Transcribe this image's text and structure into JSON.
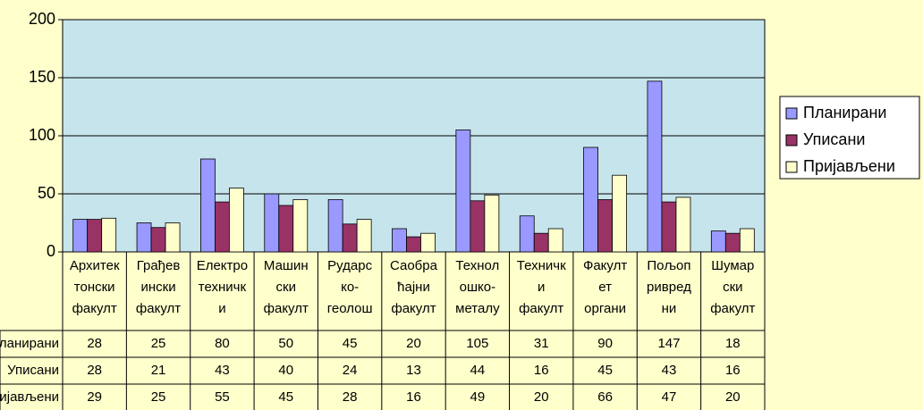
{
  "chart_data": {
    "type": "bar",
    "categories": [
      "Архитек\nтонски\nфакулт",
      "Грађев\nински\nфакулт",
      "Електро\nтехничк\nи",
      "Машин\nски\nфакулт",
      "Рударс\nко-\nгеолош",
      "Саобра\nћајни\nфакулт",
      "Технол\nошко-\nметалу",
      "Техничк\nи\nфакулт",
      "Факулт\nет\nоргани",
      "Пољоп\nривред\nни",
      "Шумар\nски\nфакулт"
    ],
    "series": [
      {
        "name": "Планирани",
        "color": "#9999ff",
        "values": [
          28,
          25,
          80,
          50,
          45,
          20,
          105,
          31,
          90,
          147,
          18
        ]
      },
      {
        "name": "Уписани",
        "color": "#993366",
        "values": [
          28,
          21,
          43,
          40,
          24,
          13,
          44,
          16,
          45,
          43,
          16
        ]
      },
      {
        "name": "Пријављени",
        "color": "#ffffcc",
        "values": [
          29,
          25,
          55,
          45,
          28,
          16,
          49,
          20,
          66,
          47,
          20
        ]
      }
    ],
    "ylim": [
      0,
      200
    ],
    "yticks": [
      0,
      50,
      100,
      150,
      200
    ],
    "grid": true,
    "legend": "right",
    "plot_background": "#c6e4ec"
  }
}
